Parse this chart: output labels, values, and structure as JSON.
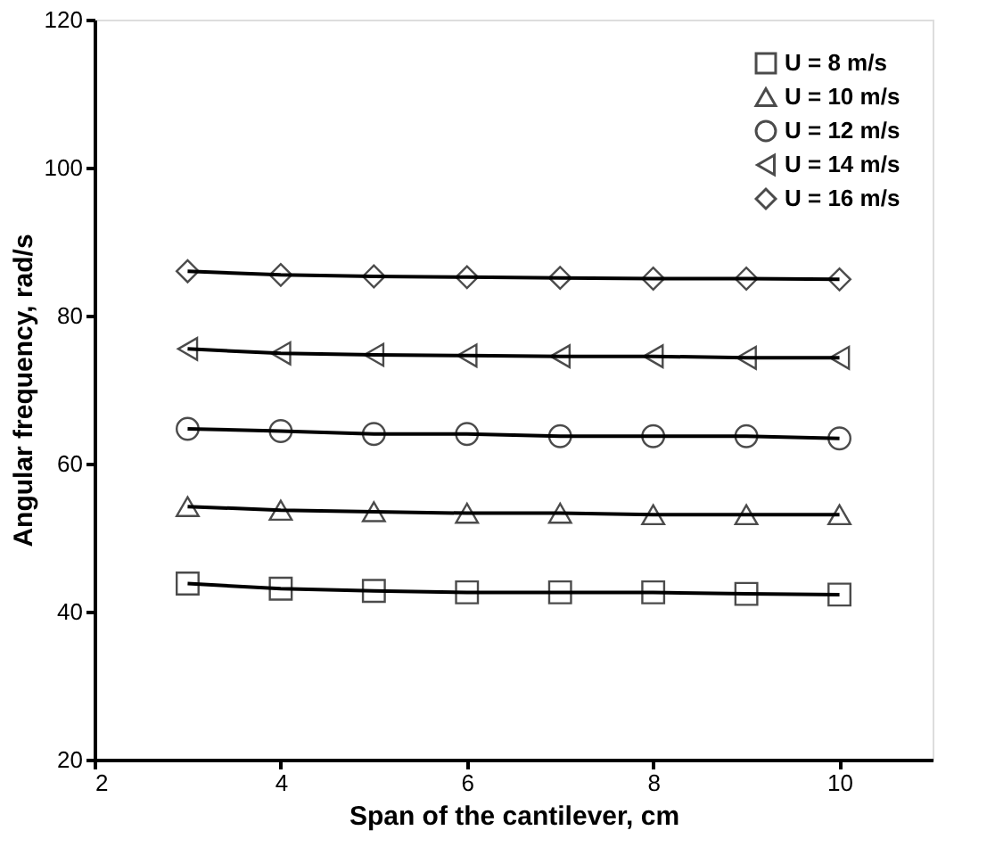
{
  "chart_data": {
    "type": "line",
    "xlabel": "Span of the cantilever, cm",
    "ylabel": "Angular frequency, rad/s",
    "x": [
      3,
      4,
      5,
      6,
      7,
      8,
      9,
      10
    ],
    "series": [
      {
        "name": "U = 8 m/s",
        "color": "#000000",
        "marker": "square",
        "values": [
          43.8,
          43.1,
          42.8,
          42.6,
          42.6,
          42.6,
          42.4,
          42.3
        ]
      },
      {
        "name": "U = 10 m/s",
        "color": "#000000",
        "marker": "triangle",
        "values": [
          54.2,
          53.7,
          53.5,
          53.3,
          53.3,
          53.1,
          53.1,
          53.1
        ]
      },
      {
        "name": "U = 12 m/s",
        "color": "#000000",
        "marker": "circle",
        "values": [
          64.7,
          64.4,
          64.0,
          64.0,
          63.7,
          63.7,
          63.7,
          63.4
        ]
      },
      {
        "name": "U = 14 m/s",
        "color": "#000000",
        "marker": "triangle-left",
        "values": [
          75.5,
          74.9,
          74.7,
          74.6,
          74.5,
          74.5,
          74.3,
          74.3
        ]
      },
      {
        "name": "U = 16 m/s",
        "color": "#000000",
        "marker": "diamond",
        "values": [
          86.0,
          85.5,
          85.3,
          85.2,
          85.1,
          85.0,
          85.0,
          84.9
        ]
      }
    ],
    "xlim": [
      2,
      11
    ],
    "xticks": [
      2,
      4,
      6,
      8,
      10
    ],
    "ylim": [
      20,
      120
    ],
    "yticks": [
      20,
      40,
      60,
      80,
      100,
      120
    ],
    "grid": false,
    "legend": "top right",
    "line_style": "solid"
  }
}
